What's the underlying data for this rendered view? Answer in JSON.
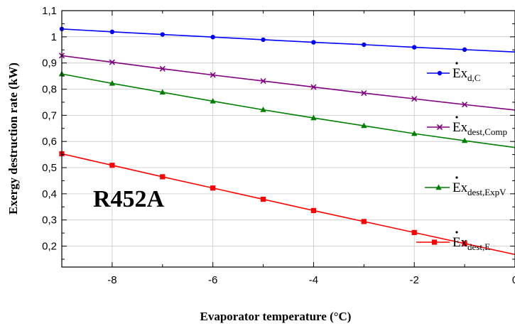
{
  "chart_data": {
    "type": "line",
    "title": "",
    "xlabel": "Evaporator temperature (°C)",
    "ylabel": "Exergy destruction rate (kW)",
    "annotation": "R452A",
    "xlim": [
      -9,
      0
    ],
    "ylim": [
      0.12,
      1.1
    ],
    "x_ticks": [
      -8,
      -6,
      -4,
      -2,
      0
    ],
    "x_tick_labels": [
      "-8",
      "-6",
      "-4",
      "-2",
      "0"
    ],
    "y_ticks": [
      0.2,
      0.3,
      0.4,
      0.5,
      0.6,
      0.7,
      0.8,
      0.9,
      1.0,
      1.1
    ],
    "y_tick_labels": [
      "0,2",
      "0,3",
      "0,4",
      "0,5",
      "0,6",
      "0,7",
      "0,8",
      "0,9",
      "1",
      "1,1"
    ],
    "grid": true,
    "legend_placement": "inside-right (beside lines)",
    "x": [
      -9,
      -8,
      -7,
      -6,
      -5,
      -4,
      -3,
      -2,
      -1,
      0
    ],
    "series": [
      {
        "name": "Ex",
        "name_sub": "d,C",
        "color": "#0000ff",
        "marker": "circle",
        "values": [
          1.03,
          1.019,
          1.009,
          0.999,
          0.989,
          0.979,
          0.97,
          0.96,
          0.951,
          0.942
        ]
      },
      {
        "name": "Ex",
        "name_sub": "dest,Comp",
        "color": "#800080",
        "marker": "x",
        "values": [
          0.928,
          0.903,
          0.878,
          0.854,
          0.831,
          0.808,
          0.785,
          0.763,
          0.741,
          0.72
        ]
      },
      {
        "name": "Ex",
        "name_sub": "dest,ExpV",
        "color": "#008000",
        "marker": "triangle",
        "values": [
          0.858,
          0.822,
          0.788,
          0.754,
          0.721,
          0.69,
          0.66,
          0.63,
          0.603,
          0.577
        ]
      },
      {
        "name": "Ex",
        "name_sub": "dest,E",
        "color": "#ff0000",
        "marker": "square",
        "values": [
          0.553,
          0.509,
          0.465,
          0.422,
          0.379,
          0.336,
          0.294,
          0.252,
          0.21,
          0.168
        ]
      }
    ]
  }
}
